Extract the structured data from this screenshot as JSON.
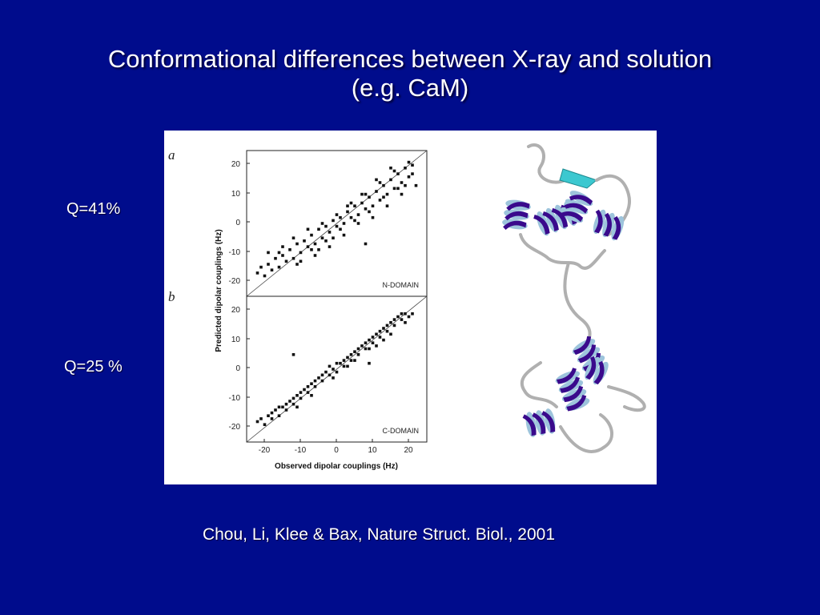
{
  "slide": {
    "title_line1": "Conformational differences between X-ray and solution",
    "title_line2": "(e.g. CaM)",
    "q_top": "Q=41%",
    "q_bottom": "Q=25 %",
    "citation": "Chou, Li, Klee & Bax, Nature Struct. Biol., 2001"
  },
  "colors": {
    "background": "#000c8c",
    "helix_purple": "#3a0a8c",
    "helix_light": "#9dc4dc",
    "strand_cyan": "#3cc8d0"
  },
  "chart_data": [
    {
      "type": "scatter",
      "panel_label": "a",
      "domain_label": "N-DOMAIN",
      "ylabel": "Predicted dipolar couplings (Hz)",
      "yticks": [
        "20",
        "10",
        "0",
        "-10",
        "-20"
      ],
      "xlim": [
        -25,
        25
      ],
      "ylim": [
        -25,
        25
      ],
      "diagonal": true,
      "points": [
        [
          -22,
          -17
        ],
        [
          -21,
          -15
        ],
        [
          -20,
          -18
        ],
        [
          -19,
          -14
        ],
        [
          -18,
          -16
        ],
        [
          -17,
          -12
        ],
        [
          -16,
          -15
        ],
        [
          -15,
          -11
        ],
        [
          -14,
          -13
        ],
        [
          -13,
          -9
        ],
        [
          -12,
          -12
        ],
        [
          -11,
          -7
        ],
        [
          -10,
          -10
        ],
        [
          -9,
          -6
        ],
        [
          -8,
          -8
        ],
        [
          -7,
          -4
        ],
        [
          -6,
          -7
        ],
        [
          -5,
          -2
        ],
        [
          -4,
          -5
        ],
        [
          -3,
          -1
        ],
        [
          -2,
          -3
        ],
        [
          -1,
          1
        ],
        [
          0,
          -1
        ],
        [
          1,
          2
        ],
        [
          2,
          0
        ],
        [
          3,
          4
        ],
        [
          4,
          2
        ],
        [
          5,
          6
        ],
        [
          6,
          3
        ],
        [
          7,
          7
        ],
        [
          8,
          5
        ],
        [
          9,
          9
        ],
        [
          10,
          6
        ],
        [
          11,
          11
        ],
        [
          12,
          8
        ],
        [
          13,
          13
        ],
        [
          14,
          10
        ],
        [
          15,
          15
        ],
        [
          16,
          12
        ],
        [
          17,
          17
        ],
        [
          18,
          14
        ],
        [
          19,
          19
        ],
        [
          20,
          16
        ],
        [
          21,
          20
        ],
        [
          -19,
          -10
        ],
        [
          -15,
          -8
        ],
        [
          -12,
          -5
        ],
        [
          -10,
          -13
        ],
        [
          -8,
          -2
        ],
        [
          -6,
          -11
        ],
        [
          -4,
          0
        ],
        [
          -2,
          -8
        ],
        [
          0,
          3
        ],
        [
          2,
          -4
        ],
        [
          4,
          7
        ],
        [
          6,
          0
        ],
        [
          8,
          10
        ],
        [
          10,
          2
        ],
        [
          12,
          14
        ],
        [
          14,
          6
        ],
        [
          16,
          18
        ],
        [
          18,
          10
        ],
        [
          20,
          21
        ],
        [
          22,
          13
        ],
        [
          -3,
          -6
        ],
        [
          1,
          -2
        ],
        [
          5,
          1
        ],
        [
          9,
          4
        ],
        [
          13,
          9
        ],
        [
          17,
          12
        ],
        [
          -7,
          -9
        ],
        [
          -11,
          -14
        ],
        [
          3,
          6
        ],
        [
          7,
          10
        ],
        [
          11,
          15
        ],
        [
          15,
          19
        ],
        [
          19,
          13
        ],
        [
          21,
          17
        ],
        [
          -1,
          -5
        ],
        [
          -5,
          -9
        ],
        [
          8,
          -7
        ],
        [
          -16,
          -10
        ]
      ]
    },
    {
      "type": "scatter",
      "panel_label": "b",
      "domain_label": "C-DOMAIN",
      "xlabel": "Observed dipolar couplings (Hz)",
      "xticks": [
        "-20",
        "-10",
        "0",
        "10",
        "20"
      ],
      "yticks": [
        "20",
        "10",
        "0",
        "-10",
        "-20"
      ],
      "xlim": [
        -25,
        25
      ],
      "ylim": [
        -25,
        25
      ],
      "diagonal": true,
      "points": [
        [
          -22,
          -18
        ],
        [
          -21,
          -17
        ],
        [
          -20,
          -19
        ],
        [
          -19,
          -16
        ],
        [
          -18,
          -17
        ],
        [
          -17,
          -14
        ],
        [
          -16,
          -16
        ],
        [
          -15,
          -13
        ],
        [
          -14,
          -14
        ],
        [
          -13,
          -11
        ],
        [
          -12,
          -12
        ],
        [
          -11,
          -9
        ],
        [
          -10,
          -10
        ],
        [
          -9,
          -7
        ],
        [
          -8,
          -8
        ],
        [
          -7,
          -5
        ],
        [
          -6,
          -6
        ],
        [
          -5,
          -3
        ],
        [
          -4,
          -4
        ],
        [
          -3,
          -1
        ],
        [
          -2,
          -2
        ],
        [
          -1,
          0
        ],
        [
          0,
          -1
        ],
        [
          1,
          2
        ],
        [
          2,
          1
        ],
        [
          3,
          4
        ],
        [
          4,
          3
        ],
        [
          5,
          6
        ],
        [
          6,
          5
        ],
        [
          7,
          8
        ],
        [
          8,
          7
        ],
        [
          9,
          10
        ],
        [
          10,
          9
        ],
        [
          11,
          12
        ],
        [
          12,
          11
        ],
        [
          13,
          14
        ],
        [
          14,
          13
        ],
        [
          15,
          16
        ],
        [
          16,
          15
        ],
        [
          17,
          18
        ],
        [
          18,
          17
        ],
        [
          19,
          19
        ],
        [
          20,
          18
        ],
        [
          21,
          19
        ],
        [
          -18,
          -15
        ],
        [
          -14,
          -12
        ],
        [
          -10,
          -8
        ],
        [
          -6,
          -4
        ],
        [
          -2,
          1
        ],
        [
          2,
          3
        ],
        [
          6,
          7
        ],
        [
          10,
          11
        ],
        [
          14,
          15
        ],
        [
          18,
          19
        ],
        [
          -12,
          -10
        ],
        [
          -8,
          -6
        ],
        [
          -4,
          -2
        ],
        [
          0,
          2
        ],
        [
          4,
          5
        ],
        [
          8,
          9
        ],
        [
          12,
          13
        ],
        [
          16,
          17
        ],
        [
          -16,
          -13
        ],
        [
          -7,
          -9
        ],
        [
          3,
          1
        ],
        [
          11,
          8
        ],
        [
          15,
          12
        ],
        [
          19,
          16
        ],
        [
          -11,
          -13
        ],
        [
          -1,
          -3
        ],
        [
          5,
          3
        ],
        [
          9,
          7
        ],
        [
          13,
          10
        ],
        [
          -12,
          5
        ],
        [
          9,
          2
        ]
      ]
    }
  ]
}
